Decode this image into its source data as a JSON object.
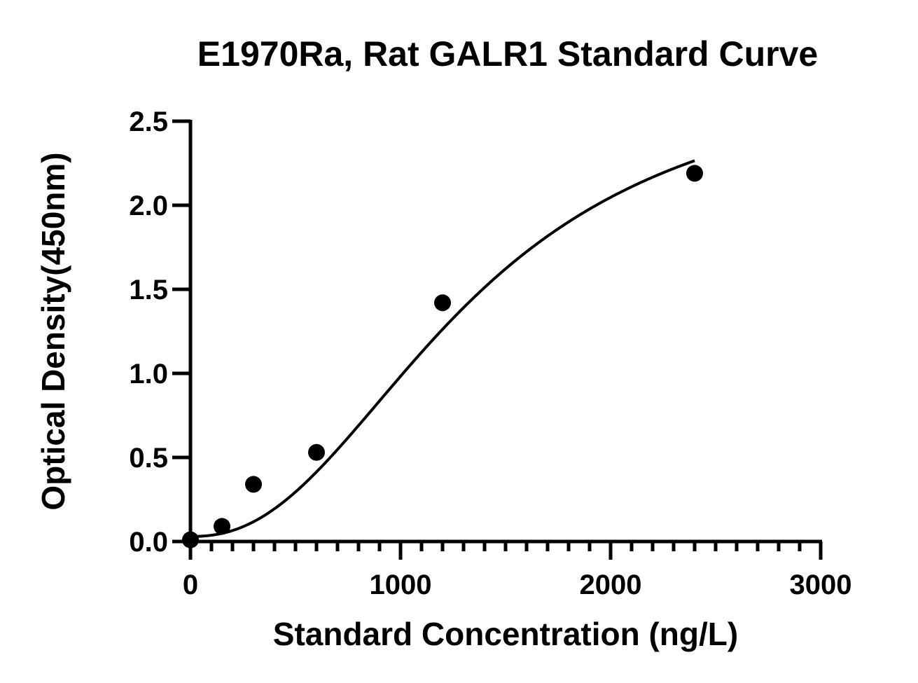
{
  "chart_data": {
    "type": "scatter",
    "title": "E1970Ra, Rat GALR1 Standard Curve",
    "xlabel": "Standard Concentration (ng/L)",
    "ylabel": "Optical Density(450nm)",
    "xlim": [
      0,
      3000
    ],
    "ylim": [
      0,
      2.5
    ],
    "x_ticks": [
      0,
      1000,
      2000,
      3000
    ],
    "x_tick_labels": [
      "0",
      "1000",
      "2000",
      "3000"
    ],
    "x_minor_step": 100,
    "y_ticks": [
      0,
      0.5,
      1.0,
      1.5,
      2.0,
      2.5
    ],
    "y_tick_labels": [
      "0.0",
      "0.5",
      "1.0",
      "1.5",
      "2.0",
      "2.5"
    ],
    "grid": false,
    "series": [
      {
        "points": [
          {
            "x": 0,
            "y": 0.01
          },
          {
            "x": 150,
            "y": 0.09
          },
          {
            "x": 300,
            "y": 0.34
          },
          {
            "x": 600,
            "y": 0.53
          },
          {
            "x": 1200,
            "y": 1.42
          },
          {
            "x": 2400,
            "y": 2.19
          }
        ],
        "marker_color": "#000000"
      }
    ],
    "fit_curve": {
      "model": "4PL",
      "A": 0.03,
      "B": 2.3,
      "C": 1340,
      "D": 2.85,
      "x_range": [
        0,
        2400
      ],
      "color": "#000000"
    }
  }
}
